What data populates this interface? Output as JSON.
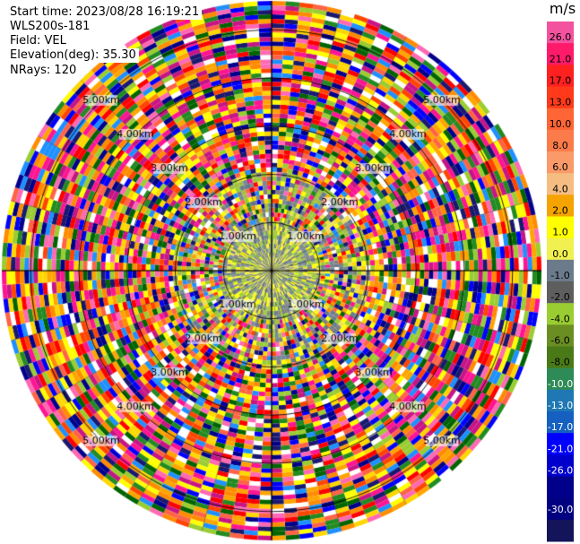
{
  "header": {
    "start_time": "Start time: 2023/08/28 16:19:21",
    "instrument": "WLS200s-181",
    "field": "Field: VEL",
    "elevation": "Elevation(deg): 35.30",
    "nrays": "NRays: 120"
  },
  "chart_data": {
    "type": "heatmap",
    "projection": "polar-ppi",
    "units": "m/s",
    "n_rays": 120,
    "range_rings_km": [
      1.0,
      2.0,
      3.0,
      4.0,
      5.0
    ],
    "range_ring_labels": [
      "1.00km",
      "2.00km",
      "3.00km",
      "4.00km",
      "5.00km"
    ],
    "colorbar": {
      "vmin": -30.0,
      "vmax": 30.0,
      "tick_labels": [
        "26.0",
        "21.0",
        "17.0",
        "13.0",
        "10.0",
        "8.0",
        "6.0",
        "4.0",
        "2.0",
        "1.0",
        "0.0",
        "-1.0",
        "-2.0",
        "-4.0",
        "-6.0",
        "-8.0",
        "-10.0",
        "-13.0",
        "-17.0",
        "-21.0",
        "-26.0",
        "-30.0"
      ],
      "colors": [
        "#f3529e",
        "#ff1a6a",
        "#ff2020",
        "#ff3a1a",
        "#ff6535",
        "#fb7c4a",
        "#fa9a69",
        "#f6bd83",
        "#f4a300",
        "#ffff00",
        "#f0f050",
        "#6b7b8c",
        "#5e5e5e",
        "#9acd32",
        "#6b8e23",
        "#4a7a18",
        "#2e8b57",
        "#1f78b4",
        "#1560c0",
        "#0000ff",
        "#0000cd",
        "#00008b",
        "#000080",
        "#14145a"
      ]
    }
  }
}
